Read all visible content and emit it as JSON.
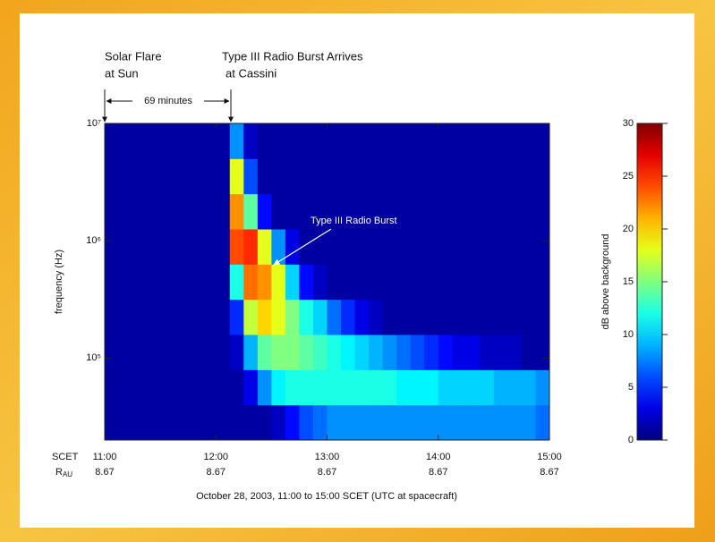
{
  "chart_data": {
    "type": "spectrogram",
    "xlabel": "October 28, 2003, 11:00 to 15:00 SCET (UTC at spacecraft)",
    "ylabel": "frequency (Hz)",
    "colorbar_label": "dB above background",
    "xlim": [
      11,
      15
    ],
    "xticks": [
      {
        "value": 11,
        "label": "11:00"
      },
      {
        "value": 12,
        "label": "12:00"
      },
      {
        "value": 13,
        "label": "13:00"
      },
      {
        "value": 14,
        "label": "14:00"
      },
      {
        "value": 15,
        "label": "15:00"
      }
    ],
    "x_row_label": "SCET",
    "r_row_label": {
      "main": "R",
      "sub": "AU"
    },
    "r_values": [
      8.67,
      8.67,
      8.67,
      8.67,
      8.67
    ],
    "ylim": [
      20000,
      10000000
    ],
    "ylog": true,
    "yticks": [
      {
        "value": 100000,
        "label": "10⁵"
      },
      {
        "value": 1000000,
        "label": "10⁶"
      },
      {
        "value": 10000000,
        "label": "10⁷"
      }
    ],
    "clim": [
      0,
      30
    ],
    "cticks": [
      0,
      5,
      10,
      15,
      20,
      25,
      30
    ],
    "colormap": "jet",
    "annotations": {
      "flare": [
        "Solar Flare",
        "at Sun"
      ],
      "arrival": [
        "Type III Radio Burst Arrives",
        "at Cassini"
      ],
      "interval": "69 minutes",
      "burst": "Type III Radio Burst"
    },
    "z": [
      [
        1,
        1,
        1,
        1,
        1,
        1,
        1,
        1,
        1,
        1,
        1,
        1,
        2,
        4,
        6,
        7,
        8,
        8,
        8,
        8,
        8,
        8,
        8,
        8,
        8,
        8,
        8,
        8,
        8,
        8,
        8,
        7
      ],
      [
        1,
        1,
        1,
        1,
        1,
        1,
        1,
        1,
        1,
        1,
        3,
        8,
        11,
        12,
        12,
        12,
        12,
        12,
        12,
        12,
        12,
        11,
        11,
        11,
        10,
        10,
        10,
        10,
        9,
        9,
        9,
        8
      ],
      [
        1,
        1,
        1,
        1,
        1,
        1,
        1,
        1,
        1,
        2,
        9,
        14,
        15,
        15,
        14,
        13,
        12,
        11,
        10,
        9,
        8,
        7,
        6,
        5,
        4,
        3,
        3,
        2,
        2,
        2,
        1,
        1
      ],
      [
        1,
        1,
        1,
        1,
        1,
        1,
        1,
        1,
        1,
        5,
        17,
        20,
        18,
        15,
        12,
        10,
        7,
        5,
        3,
        2,
        1,
        1,
        1,
        1,
        1,
        1,
        1,
        1,
        1,
        1,
        1,
        1
      ],
      [
        1,
        1,
        1,
        1,
        1,
        1,
        1,
        1,
        1,
        12,
        23,
        22,
        18,
        10,
        4,
        2,
        1,
        1,
        1,
        1,
        1,
        1,
        1,
        1,
        1,
        1,
        1,
        1,
        1,
        1,
        1,
        1
      ],
      [
        1,
        1,
        1,
        1,
        1,
        1,
        1,
        1,
        1,
        24,
        25,
        18,
        8,
        3,
        1,
        1,
        1,
        1,
        1,
        1,
        1,
        1,
        1,
        1,
        1,
        1,
        1,
        1,
        1,
        1,
        1,
        1
      ],
      [
        1,
        1,
        1,
        1,
        1,
        1,
        1,
        1,
        1,
        22,
        14,
        4,
        1,
        1,
        1,
        1,
        1,
        1,
        1,
        1,
        1,
        1,
        1,
        1,
        1,
        1,
        1,
        1,
        1,
        1,
        1,
        1
      ],
      [
        1,
        1,
        1,
        1,
        1,
        1,
        1,
        1,
        1,
        18,
        6,
        1,
        1,
        1,
        1,
        1,
        1,
        1,
        1,
        1,
        1,
        1,
        1,
        1,
        1,
        1,
        1,
        1,
        1,
        1,
        1,
        1
      ],
      [
        1,
        1,
        1,
        1,
        1,
        1,
        1,
        1,
        1,
        8,
        2,
        1,
        1,
        1,
        1,
        1,
        1,
        1,
        1,
        1,
        1,
        1,
        1,
        1,
        1,
        1,
        1,
        1,
        1,
        1,
        1,
        1
      ]
    ]
  }
}
